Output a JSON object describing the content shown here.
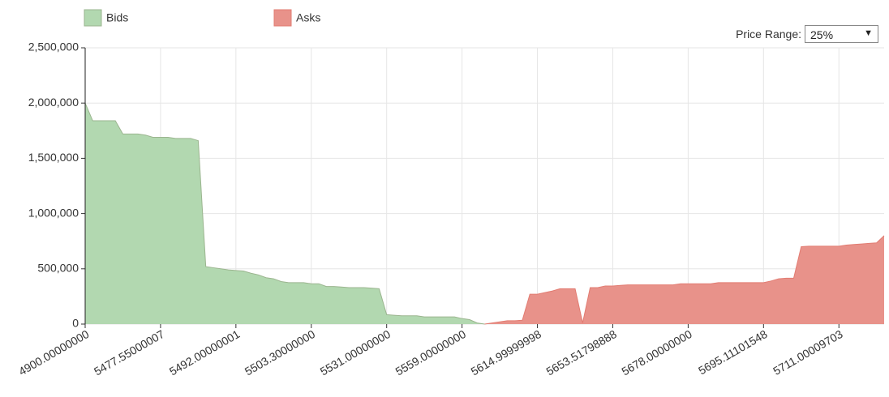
{
  "chart_data": {
    "type": "area",
    "categories": [
      "4900.00000000",
      null,
      null,
      null,
      null,
      null,
      null,
      null,
      null,
      null,
      "5477.55000007",
      null,
      null,
      null,
      null,
      null,
      null,
      null,
      null,
      null,
      "5492.00000001",
      null,
      null,
      null,
      null,
      null,
      null,
      null,
      null,
      null,
      "5503.30000000",
      null,
      null,
      null,
      null,
      null,
      null,
      null,
      null,
      null,
      "5531.00000000",
      null,
      null,
      null,
      null,
      null,
      null,
      null,
      null,
      null,
      "5559.00000000",
      null,
      null,
      null,
      null,
      null,
      null,
      null,
      null,
      null,
      "5614.99999998",
      null,
      null,
      null,
      null,
      null,
      null,
      null,
      null,
      null,
      "5653.51798888",
      null,
      null,
      null,
      null,
      null,
      null,
      null,
      null,
      null,
      "5678.00000000",
      null,
      null,
      null,
      null,
      null,
      null,
      null,
      null,
      null,
      "5695.11101548",
      null,
      null,
      null,
      null,
      null,
      null,
      null,
      null,
      null,
      "5711.00009703",
      null,
      null,
      null,
      null,
      null,
      null
    ],
    "series": [
      {
        "name": "Bids",
        "color": "#b2d8b0",
        "stroke": "#9bb58f",
        "values": [
          2000000,
          1840000,
          1840000,
          1840000,
          1840000,
          1720000,
          1720000,
          1720000,
          1710000,
          1690000,
          1690000,
          1690000,
          1680000,
          1680000,
          1680000,
          1660000,
          520000,
          510000,
          500000,
          490000,
          485000,
          480000,
          460000,
          445000,
          420000,
          410000,
          385000,
          375000,
          375000,
          375000,
          365000,
          365000,
          340000,
          340000,
          335000,
          330000,
          330000,
          330000,
          325000,
          320000,
          85000,
          80000,
          75000,
          75000,
          75000,
          65000,
          65000,
          65000,
          65000,
          65000,
          50000,
          40000,
          10000,
          0,
          null,
          null,
          null,
          null,
          null,
          null,
          null,
          null,
          null,
          null,
          null,
          null,
          null,
          null,
          null,
          null,
          null,
          null,
          null,
          null,
          null,
          null,
          null,
          null,
          null,
          null,
          null,
          null,
          null,
          null,
          null,
          null,
          null,
          null,
          null,
          null,
          null,
          null,
          null,
          null,
          null,
          null,
          null,
          null,
          null,
          null,
          null,
          null,
          null,
          null,
          null,
          null,
          null
        ]
      },
      {
        "name": "Asks",
        "color": "#e8928a",
        "stroke": "#e27c72",
        "values": [
          null,
          null,
          null,
          null,
          null,
          null,
          null,
          null,
          null,
          null,
          null,
          null,
          null,
          null,
          null,
          null,
          null,
          null,
          null,
          null,
          null,
          null,
          null,
          null,
          null,
          null,
          null,
          null,
          null,
          null,
          null,
          null,
          null,
          null,
          null,
          null,
          null,
          null,
          null,
          null,
          null,
          null,
          null,
          null,
          null,
          null,
          null,
          null,
          null,
          null,
          null,
          null,
          null,
          0,
          10000,
          20000,
          30000,
          30000,
          35000,
          270000,
          270000,
          285000,
          300000,
          320000,
          320000,
          320000,
          10000,
          330000,
          330000,
          345000,
          345000,
          350000,
          355000,
          355000,
          355000,
          355000,
          355000,
          355000,
          355000,
          365000,
          365000,
          365000,
          365000,
          365000,
          375000,
          375000,
          375000,
          375000,
          375000,
          375000,
          375000,
          390000,
          410000,
          415000,
          415000,
          700000,
          705000,
          705000,
          705000,
          705000,
          705000,
          715000,
          720000,
          725000,
          730000,
          735000,
          800000
        ]
      }
    ],
    "ylim": [
      0,
      2500000
    ],
    "yticks": [
      {
        "value": 0,
        "label": "0"
      },
      {
        "value": 500000,
        "label": "500,000"
      },
      {
        "value": 1000000,
        "label": "1,000,000"
      },
      {
        "value": 1500000,
        "label": "1,500,000"
      },
      {
        "value": 2000000,
        "label": "2,000,000"
      },
      {
        "value": 2500000,
        "label": "2,500,000"
      }
    ],
    "grid": true,
    "legend": "top-left"
  },
  "controls": {
    "price_range_label": "Price Range:",
    "price_range_value": "25%"
  }
}
